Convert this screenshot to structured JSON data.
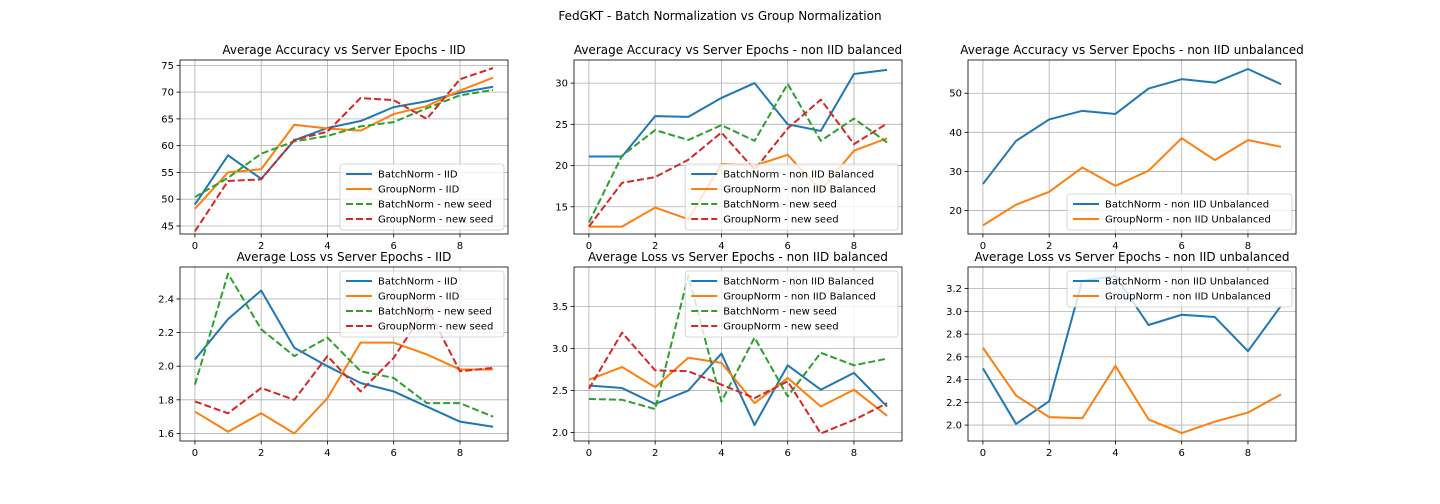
{
  "figure": {
    "title": "FedGKT - Batch Normalization vs Group Normalization"
  },
  "colors": {
    "blue": "#1f77b4",
    "orange": "#ff7f0e",
    "green": "#2ca02c",
    "red": "#d62728"
  },
  "chart_data": [
    {
      "type": "line",
      "title": "Average Accuracy vs Server Epochs - IID",
      "x": [
        0,
        1,
        2,
        3,
        4,
        5,
        6,
        7,
        8,
        9
      ],
      "ylim": [
        43.5,
        76
      ],
      "yticks": [
        45,
        50,
        55,
        60,
        65,
        70,
        75
      ],
      "xticks": [
        0,
        2,
        4,
        6,
        8
      ],
      "grid": true,
      "legend_position": "lower-right",
      "series": [
        {
          "name": "BatchNorm - IID",
          "color": "#1f77b4",
          "dash": false,
          "values": [
            49.0,
            58.2,
            53.8,
            61.0,
            63.3,
            64.6,
            67.2,
            68.3,
            69.9,
            71.0
          ]
        },
        {
          "name": "GroupNorm - IID",
          "color": "#ff7f0e",
          "dash": false,
          "values": [
            48.2,
            55.0,
            55.6,
            63.9,
            63.2,
            62.8,
            65.9,
            67.4,
            70.3,
            72.7
          ]
        },
        {
          "name": "BatchNorm - new seed",
          "color": "#2ca02c",
          "dash": true,
          "values": [
            50.4,
            54.0,
            58.5,
            60.8,
            61.8,
            63.6,
            64.4,
            67.0,
            69.4,
            70.4
          ]
        },
        {
          "name": "GroupNorm - new seed",
          "color": "#d62728",
          "dash": true,
          "values": [
            44.0,
            53.4,
            53.7,
            61.1,
            62.6,
            68.9,
            68.5,
            65.0,
            72.4,
            74.5
          ]
        }
      ]
    },
    {
      "type": "line",
      "title": "Average Accuracy vs Server Epochs - non IID balanced",
      "x": [
        0,
        1,
        2,
        3,
        4,
        5,
        6,
        7,
        8,
        9
      ],
      "ylim": [
        11.7,
        32.8
      ],
      "yticks": [
        15,
        20,
        25,
        30
      ],
      "xticks": [
        0,
        2,
        4,
        6,
        8
      ],
      "grid": true,
      "legend_position": "lower-right",
      "series": [
        {
          "name": "BatchNorm - non IID Balanced",
          "color": "#1f77b4",
          "dash": false,
          "values": [
            21.1,
            21.1,
            26.0,
            25.9,
            28.2,
            30.0,
            25.0,
            24.2,
            31.1,
            31.6
          ]
        },
        {
          "name": "GroupNorm - non IID Balanced",
          "color": "#ff7f0e",
          "dash": false,
          "values": [
            12.6,
            12.6,
            14.9,
            13.5,
            20.2,
            20.0,
            21.3,
            17.0,
            21.8,
            23.3
          ]
        },
        {
          "name": "BatchNorm - new seed",
          "color": "#2ca02c",
          "dash": true,
          "values": [
            13.1,
            21.2,
            24.3,
            23.1,
            24.9,
            23.0,
            29.9,
            23.0,
            25.7,
            22.8
          ]
        },
        {
          "name": "GroupNorm - new seed",
          "color": "#d62728",
          "dash": true,
          "values": [
            12.6,
            17.9,
            18.6,
            20.7,
            24.0,
            19.5,
            24.5,
            28.0,
            22.6,
            25.1
          ]
        }
      ]
    },
    {
      "type": "line",
      "title": "Average Accuracy vs Server Epochs - non IID unbalanced",
      "x": [
        0,
        1,
        2,
        3,
        4,
        5,
        6,
        7,
        8,
        9
      ],
      "ylim": [
        14.0,
        58.5
      ],
      "yticks": [
        20,
        30,
        40,
        50
      ],
      "xticks": [
        0,
        2,
        4,
        6,
        8
      ],
      "grid": true,
      "legend_position": "lower-right",
      "series": [
        {
          "name": "BatchNorm - non IID Unbalanced",
          "color": "#1f77b4",
          "dash": false,
          "values": [
            26.8,
            37.8,
            43.3,
            45.5,
            44.7,
            51.2,
            53.6,
            52.7,
            56.2,
            52.3
          ]
        },
        {
          "name": "GroupNorm - non IID Unbalanced",
          "color": "#ff7f0e",
          "dash": false,
          "values": [
            16.2,
            21.5,
            24.8,
            31.0,
            26.3,
            30.2,
            38.5,
            32.9,
            38.0,
            36.3
          ]
        }
      ]
    },
    {
      "type": "line",
      "title": "Average Loss vs Server Epochs - IID",
      "x": [
        0,
        1,
        2,
        3,
        4,
        5,
        6,
        7,
        8,
        9
      ],
      "ylim": [
        1.555,
        2.59
      ],
      "yticks": [
        1.6,
        1.8,
        2.0,
        2.2,
        2.4
      ],
      "xticks": [
        0,
        2,
        4,
        6,
        8
      ],
      "grid": true,
      "legend_position": "upper-right",
      "series": [
        {
          "name": "BatchNorm - IID",
          "color": "#1f77b4",
          "dash": false,
          "values": [
            2.04,
            2.28,
            2.45,
            2.11,
            2.0,
            1.9,
            1.85,
            1.76,
            1.67,
            1.64
          ]
        },
        {
          "name": "GroupNorm - IID",
          "color": "#ff7f0e",
          "dash": false,
          "values": [
            1.73,
            1.61,
            1.72,
            1.6,
            1.81,
            2.14,
            2.14,
            2.07,
            1.98,
            1.98
          ]
        },
        {
          "name": "BatchNorm - new seed",
          "color": "#2ca02c",
          "dash": true,
          "values": [
            1.89,
            2.55,
            2.22,
            2.06,
            2.17,
            1.97,
            1.93,
            1.78,
            1.78,
            1.7
          ]
        },
        {
          "name": "GroupNorm - new seed",
          "color": "#d62728",
          "dash": true,
          "values": [
            1.79,
            1.72,
            1.87,
            1.8,
            2.06,
            1.85,
            2.05,
            2.35,
            1.97,
            1.99
          ]
        }
      ]
    },
    {
      "type": "line",
      "title": "Average Loss vs Server Epochs - non IID balanced",
      "x": [
        0,
        1,
        2,
        3,
        4,
        5,
        6,
        7,
        8,
        9
      ],
      "ylim": [
        1.9,
        3.97
      ],
      "yticks": [
        2.0,
        2.5,
        3.0,
        3.5
      ],
      "xticks": [
        0,
        2,
        4,
        6,
        8
      ],
      "grid": true,
      "legend_position": "upper-right",
      "series": [
        {
          "name": "BatchNorm - non IID Balanced",
          "color": "#1f77b4",
          "dash": false,
          "values": [
            2.56,
            2.53,
            2.34,
            2.5,
            2.94,
            2.09,
            2.8,
            2.51,
            2.71,
            2.31
          ]
        },
        {
          "name": "GroupNorm - non IID Balanced",
          "color": "#ff7f0e",
          "dash": false,
          "values": [
            2.63,
            2.78,
            2.54,
            2.89,
            2.83,
            2.35,
            2.65,
            2.31,
            2.51,
            2.2
          ]
        },
        {
          "name": "BatchNorm - new seed",
          "color": "#2ca02c",
          "dash": true,
          "values": [
            2.4,
            2.39,
            2.28,
            3.87,
            2.37,
            3.13,
            2.43,
            2.95,
            2.8,
            2.88
          ]
        },
        {
          "name": "GroupNorm - new seed",
          "color": "#d62728",
          "dash": true,
          "values": [
            2.52,
            3.19,
            2.74,
            2.73,
            2.57,
            2.41,
            2.61,
            1.99,
            2.15,
            2.35
          ]
        }
      ]
    },
    {
      "type": "line",
      "title": "Average Loss vs Server Epochs - non IID unbalanced",
      "x": [
        0,
        1,
        2,
        3,
        4,
        5,
        6,
        7,
        8,
        9
      ],
      "ylim": [
        1.86,
        3.39
      ],
      "yticks": [
        2.0,
        2.2,
        2.4,
        2.6,
        2.8,
        3.0,
        3.2
      ],
      "xticks": [
        0,
        2,
        4,
        6,
        8
      ],
      "grid": true,
      "legend_position": "upper-right",
      "series": [
        {
          "name": "BatchNorm - non IID Unbalanced",
          "color": "#1f77b4",
          "dash": false,
          "values": [
            2.5,
            2.01,
            2.21,
            3.27,
            3.31,
            2.88,
            2.97,
            2.95,
            2.65,
            3.05
          ]
        },
        {
          "name": "GroupNorm - non IID Unbalanced",
          "color": "#ff7f0e",
          "dash": false,
          "values": [
            2.68,
            2.26,
            2.07,
            2.06,
            2.52,
            2.05,
            1.93,
            2.03,
            2.11,
            2.27
          ]
        }
      ]
    }
  ]
}
